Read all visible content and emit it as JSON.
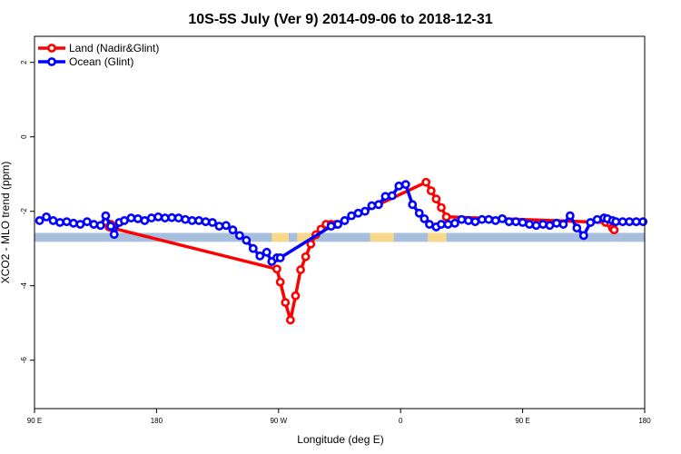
{
  "chart_data": {
    "type": "line",
    "title": "10S-5S July (Ver 9)   2014-09-06 to 2018-12-31",
    "xlabel": "Longitude (deg E)",
    "ylabel": "XCO2 - MLO trend (ppm)",
    "xlim": [
      90,
      450
    ],
    "ylim": [
      -7.3,
      2.7
    ],
    "x_ticks": [
      {
        "value": 90,
        "label": "90 E"
      },
      {
        "value": 162,
        "label": "180"
      },
      {
        "value": 234,
        "label": "90 W"
      },
      {
        "value": 306,
        "label": "0"
      },
      {
        "value": 378,
        "label": "90 E"
      },
      {
        "value": 450,
        "label": "180"
      }
    ],
    "y_ticks": [
      {
        "value": 2,
        "label": "2"
      },
      {
        "value": 0,
        "label": "0"
      },
      {
        "value": -2,
        "label": "-2"
      },
      {
        "value": -4,
        "label": "-4"
      },
      {
        "value": -6,
        "label": "-6"
      }
    ],
    "land_bar": {
      "y_range": [
        -2.82,
        -2.58
      ],
      "ocean_color": "#a7bfdd",
      "land_color": "#f8d88a",
      "land_segments": [
        [
          230,
          240
        ],
        [
          245,
          255
        ],
        [
          288,
          302
        ],
        [
          322,
          333
        ]
      ]
    },
    "series": [
      {
        "name": "Land (Nadir&Glint)",
        "color": "#ff0000",
        "x": [
          132,
          134,
          135,
          136,
          233,
          235,
          238,
          241,
          244,
          247,
          250,
          253,
          256,
          259,
          262,
          265,
          268,
          321,
          324,
          327,
          330,
          333,
          427,
          430,
          431,
          432
        ],
        "y": [
          -2.28,
          -2.42,
          -2.35,
          -2.45,
          -3.55,
          -3.9,
          -4.45,
          -4.92,
          -4.27,
          -3.57,
          -3.22,
          -2.88,
          -2.63,
          -2.48,
          -2.35,
          -2.35,
          -2.35,
          -1.22,
          -1.45,
          -1.67,
          -1.9,
          -2.15,
          -2.3,
          -2.35,
          -2.45,
          -2.5
        ]
      },
      {
        "name": "Ocean (Glint)",
        "color": "#0000ff",
        "x": [
          93,
          97,
          101,
          105,
          109,
          113,
          117,
          121,
          125,
          129,
          132,
          135,
          137,
          140,
          143,
          147,
          151,
          155,
          159,
          163,
          167,
          171,
          175,
          179,
          183,
          187,
          191,
          195,
          199,
          203,
          207,
          211,
          215,
          219,
          223,
          227,
          230,
          233,
          235,
          265,
          269,
          273,
          277,
          281,
          285,
          289,
          293,
          297,
          301,
          305,
          309,
          313,
          317,
          320,
          323,
          327,
          330,
          334,
          338,
          342,
          346,
          350,
          354,
          358,
          362,
          366,
          370,
          374,
          378,
          382,
          386,
          390,
          394,
          398,
          402,
          406,
          410,
          414,
          418,
          422,
          426,
          428,
          431,
          433,
          437,
          441,
          445,
          449
        ],
        "y": [
          -2.25,
          -2.15,
          -2.25,
          -2.3,
          -2.28,
          -2.32,
          -2.35,
          -2.28,
          -2.35,
          -2.38,
          -2.12,
          -2.4,
          -2.62,
          -2.3,
          -2.25,
          -2.18,
          -2.2,
          -2.25,
          -2.18,
          -2.15,
          -2.18,
          -2.17,
          -2.18,
          -2.22,
          -2.25,
          -2.25,
          -2.28,
          -2.3,
          -2.4,
          -2.38,
          -2.5,
          -2.65,
          -2.78,
          -3.0,
          -3.2,
          -3.1,
          -3.35,
          -3.25,
          -3.25,
          -2.4,
          -2.35,
          -2.25,
          -2.12,
          -2.05,
          -2.0,
          -1.85,
          -1.82,
          -1.6,
          -1.58,
          -1.32,
          -1.28,
          -1.82,
          -2.05,
          -2.2,
          -2.35,
          -2.42,
          -2.35,
          -2.35,
          -2.32,
          -2.22,
          -2.25,
          -2.28,
          -2.22,
          -2.22,
          -2.25,
          -2.2,
          -2.28,
          -2.28,
          -2.3,
          -2.35,
          -2.38,
          -2.35,
          -2.38,
          -2.32,
          -2.35,
          -2.12,
          -2.45,
          -2.65,
          -2.3,
          -2.22,
          -2.18,
          -2.2,
          -2.25,
          -2.28,
          -2.28,
          -2.28,
          -2.28,
          -2.28
        ]
      }
    ],
    "legend_position": "top-left"
  }
}
